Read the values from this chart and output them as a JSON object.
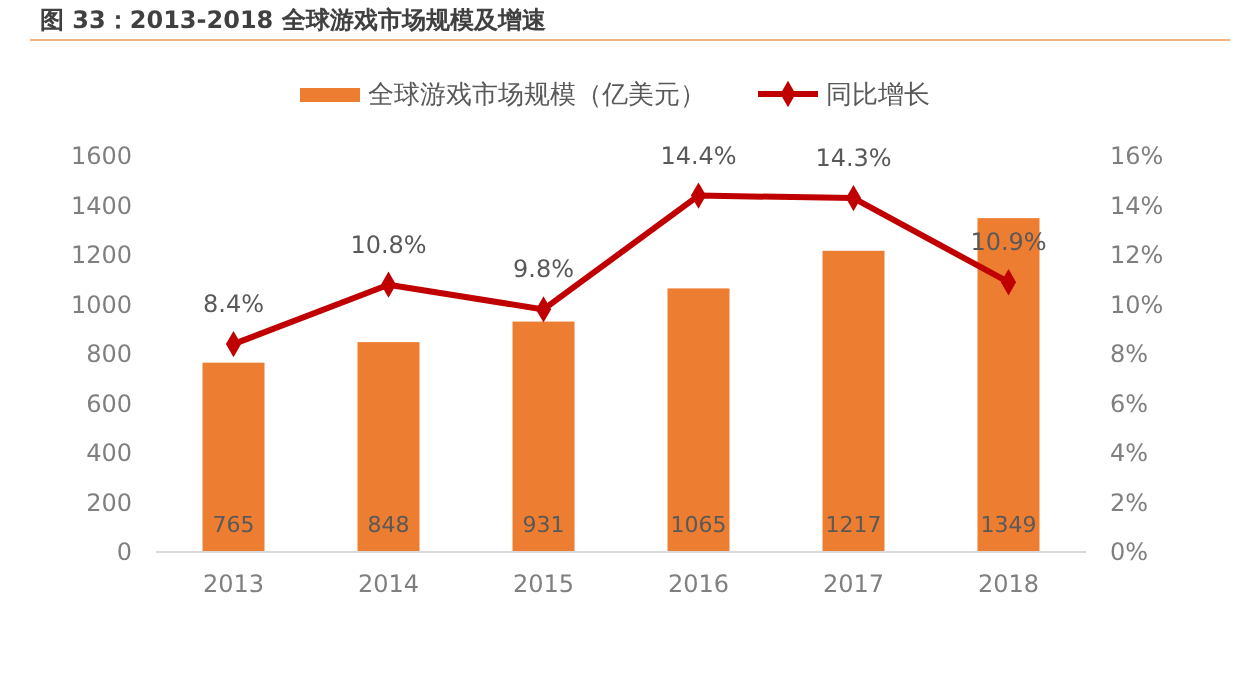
{
  "chart_data": {
    "type": "bar",
    "title": "图 33：2013-2018 全球游戏市场规模及增速",
    "categories": [
      "2013",
      "2014",
      "2015",
      "2016",
      "2017",
      "2018"
    ],
    "series": [
      {
        "name": "全球游戏市场规模（亿美元）",
        "color": "#ed7d31",
        "values": [
          765,
          848,
          931,
          1065,
          1217,
          1349
        ],
        "value_labels": [
          "765",
          "848",
          "931",
          "1065",
          "1217",
          "1349"
        ]
      },
      {
        "name": "同比增长",
        "type": "line",
        "axis": "y2",
        "color": "#c00000",
        "marker": "diamond",
        "values": [
          8.4,
          10.8,
          9.8,
          14.4,
          14.3,
          10.9
        ],
        "value_labels": [
          "8.4%",
          "10.8%",
          "9.8%",
          "14.4%",
          "14.3%",
          "10.9%"
        ]
      }
    ],
    "ylim": [
      0,
      1600
    ],
    "yticks": [
      0,
      200,
      400,
      600,
      800,
      1000,
      1200,
      1400,
      1600
    ],
    "y2lim": [
      0,
      16
    ],
    "y2ticks": [
      {
        "value": 0,
        "label": "0%"
      },
      {
        "value": 2,
        "label": "2%"
      },
      {
        "value": 4,
        "label": "4%"
      },
      {
        "value": 6,
        "label": "6%"
      },
      {
        "value": 8,
        "label": "8%"
      },
      {
        "value": 10,
        "label": "10%"
      },
      {
        "value": 12,
        "label": "12%"
      },
      {
        "value": 14,
        "label": "14%"
      },
      {
        "value": 16,
        "label": "16%"
      }
    ],
    "grid": false,
    "legend": "top"
  }
}
